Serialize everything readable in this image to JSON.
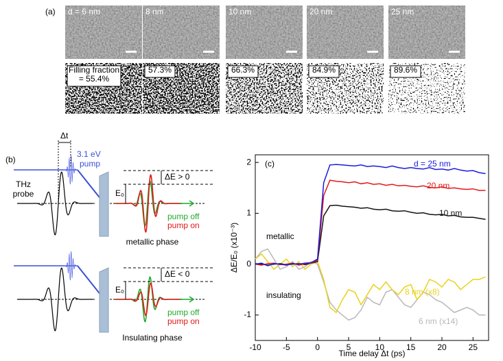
{
  "panel_a": {
    "label": "(a)",
    "samples": [
      {
        "thickness": "d = 6 nm",
        "filling_lines": [
          "Filling fraction",
          "= 55.4%"
        ]
      },
      {
        "thickness": "8 nm",
        "filling_lines": [
          "57.3%"
        ]
      },
      {
        "thickness": "10 nm",
        "filling_lines": [
          "66.3%"
        ]
      },
      {
        "thickness": "20 nm",
        "filling_lines": [
          "84.9%"
        ]
      },
      {
        "thickness": "25 nm",
        "filling_lines": [
          "89.6%"
        ]
      }
    ]
  },
  "panel_b": {
    "label": "(b)",
    "delay": "Δt",
    "pump_energy": "3.1 eV",
    "pump": "pump",
    "probe_lines": [
      "THz",
      "probe"
    ],
    "metallic": {
      "delta": "ΔE > 0",
      "e0": "E₀",
      "pump_off": "pump off",
      "pump_on": "pump on",
      "caption": "metallic phase"
    },
    "insulating": {
      "delta": "ΔE < 0",
      "e0": "E₀",
      "pump_off": "pump off",
      "pump_on": "pump on",
      "caption": "Insulating phase"
    }
  },
  "chart_data": {
    "type": "line",
    "label": "(c)",
    "x_label": "Time delay Δt (ps)",
    "y_label": "ΔE/E₀ (x10⁻³)",
    "x": [
      -10,
      -9,
      -8,
      -7,
      -6,
      -5,
      -4,
      -3,
      -2,
      -1,
      0,
      1,
      2,
      3,
      4,
      5,
      6,
      7,
      8,
      9,
      10,
      11,
      12,
      13,
      14,
      15,
      16,
      17,
      18,
      19,
      20,
      21,
      22,
      23,
      24,
      25,
      26,
      27
    ],
    "xlim": [
      -10,
      27.5
    ],
    "xticks": [
      -10,
      -5,
      0,
      5,
      10,
      15,
      20,
      25
    ],
    "ylim": [
      -1.5,
      2.15
    ],
    "yticks": [
      -1,
      0,
      1,
      2
    ],
    "series": [
      {
        "name": "d = 25 nm",
        "color": "#1a1adc",
        "values": [
          0,
          0.02,
          -0.03,
          0.01,
          0,
          -0.02,
          0.01,
          0,
          0.02,
          0.03,
          0.1,
          1.6,
          1.95,
          1.96,
          1.95,
          1.94,
          1.93,
          1.95,
          1.92,
          1.93,
          1.92,
          1.9,
          1.93,
          1.9,
          1.88,
          1.9,
          1.88,
          1.87,
          1.9,
          1.86,
          1.87,
          1.85,
          1.88,
          1.85,
          1.83,
          1.84,
          1.8,
          1.78
        ]
      },
      {
        "name": "20 nm",
        "color": "#e01818",
        "values": [
          0,
          -0.02,
          0.01,
          0.02,
          -0.01,
          0,
          0.02,
          -0.02,
          0.01,
          0.02,
          0.08,
          1.35,
          1.65,
          1.63,
          1.62,
          1.6,
          1.62,
          1.58,
          1.6,
          1.57,
          1.58,
          1.55,
          1.57,
          1.54,
          1.55,
          1.53,
          1.52,
          1.54,
          1.51,
          1.5,
          1.52,
          1.49,
          1.5,
          1.48,
          1.47,
          1.48,
          1.45,
          1.45
        ]
      },
      {
        "name": "10 nm",
        "color": "#111111",
        "values": [
          0.01,
          0,
          -0.02,
          0,
          0.01,
          -0.01,
          0,
          0.01,
          -0.01,
          0.02,
          0.05,
          0.95,
          1.15,
          1.16,
          1.14,
          1.13,
          1.12,
          1.1,
          1.11,
          1.08,
          1.07,
          1.08,
          1.05,
          1.04,
          1.05,
          1.02,
          1.0,
          1.01,
          0.98,
          0.97,
          0.98,
          0.95,
          0.96,
          0.93,
          0.92,
          0.92,
          0.9,
          0.88
        ]
      },
      {
        "name": "8 nm (x8)",
        "color": "#e8d21a",
        "values": [
          0.1,
          0.2,
          0.05,
          -0.1,
          0,
          0.1,
          -0.05,
          0.05,
          -0.1,
          0,
          0.05,
          -0.3,
          -0.85,
          -0.95,
          -0.7,
          -0.5,
          -0.55,
          -0.8,
          -0.6,
          -0.4,
          -0.5,
          -0.35,
          -0.5,
          -0.6,
          -0.45,
          -0.4,
          -0.7,
          -0.55,
          -0.3,
          -0.35,
          -0.45,
          -0.3,
          -0.35,
          -0.5,
          -0.4,
          -0.3,
          -0.3,
          -0.25
        ]
      },
      {
        "name": "6 nm (x14)",
        "color": "#b8b8b8",
        "values": [
          0.1,
          0.25,
          0.3,
          0.1,
          -0.1,
          -0.05,
          0.05,
          -0.1,
          -0.05,
          0.05,
          0,
          -0.35,
          -0.75,
          -0.9,
          -1.0,
          -1.1,
          -1.05,
          -0.9,
          -0.65,
          -0.75,
          -0.8,
          -0.55,
          -0.5,
          -0.65,
          -0.8,
          -0.85,
          -0.7,
          -0.55,
          -0.6,
          -0.7,
          -0.75,
          -0.85,
          -0.95,
          -0.9,
          -0.85,
          -0.9,
          -1.0,
          -1.0
        ]
      }
    ],
    "annotations": [
      "metallic",
      "insulating"
    ]
  }
}
